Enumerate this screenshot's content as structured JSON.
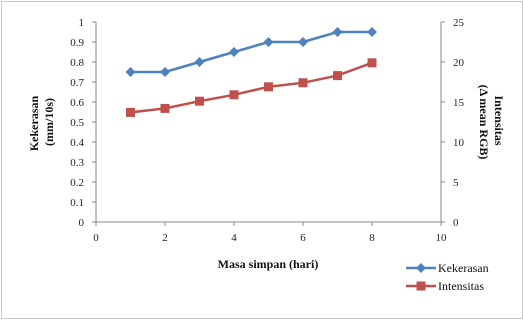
{
  "chart_data": {
    "type": "line",
    "xlabel": "Masa simpan (hari)",
    "ylabel_left": [
      "Kekerasan",
      "(mm/10s)"
    ],
    "ylabel_right": [
      "Intensitas",
      "(Δ mean RGB)"
    ],
    "xlim": [
      0,
      10
    ],
    "ylim_left": [
      0,
      1
    ],
    "ylim_right": [
      0,
      25
    ],
    "x_ticks": [
      "0",
      "2",
      "4",
      "6",
      "8",
      "10"
    ],
    "y_left_ticks": [
      "0",
      "0.1",
      "0.2",
      "0.3",
      "0.4",
      "0.5",
      "0.6",
      "0.7",
      "0.8",
      "0.9",
      "1"
    ],
    "y_right_ticks": [
      "0",
      "5",
      "10",
      "15",
      "20",
      "25"
    ],
    "grid": false,
    "legend_position": "bottom-right",
    "series": [
      {
        "name": "Kekerasan",
        "axis": "left",
        "color": "#4F81BD",
        "marker": "diamond",
        "x": [
          1,
          2,
          3,
          4,
          5,
          6,
          7,
          8
        ],
        "y": [
          0.75,
          0.75,
          0.8,
          0.85,
          0.9,
          0.9,
          0.95,
          0.95
        ]
      },
      {
        "name": "Intensitas",
        "axis": "right",
        "color": "#C0504D",
        "marker": "square",
        "x": [
          1,
          2,
          3,
          4,
          5,
          6,
          7,
          8
        ],
        "y": [
          13.7,
          14.2,
          15.1,
          15.9,
          16.9,
          17.4,
          18.3,
          19.9
        ]
      }
    ]
  }
}
